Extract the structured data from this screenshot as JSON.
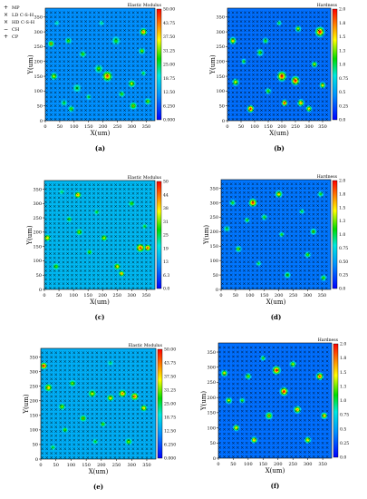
{
  "legend_entries": [
    {
      "symbol": "+",
      "label": "MP"
    },
    {
      "symbol": "×",
      "label": "LD C-S-H"
    },
    {
      "symbol": "×",
      "label": "HD C-S-H"
    },
    {
      "symbol": "−",
      "label": "CH"
    },
    {
      "symbol": "+",
      "label": "CP"
    }
  ],
  "chart_data": [
    {
      "type": "heatmap",
      "panel_label": "(a)",
      "colorbar_title": "Elastic Modulus",
      "xlabel": "X(um)",
      "ylabel": "Y(um)",
      "x_ticks": [
        0,
        50,
        100,
        150,
        200,
        250,
        300,
        350
      ],
      "y_ticks": [
        0,
        50,
        100,
        150,
        200,
        250,
        300,
        350
      ],
      "xlim": [
        0,
        380
      ],
      "ylim": [
        0,
        380
      ],
      "colorbar_ticks": [
        "0.000",
        "6.250",
        "12.50",
        "18.75",
        "25.00",
        "31.25",
        "37.50",
        "43.75",
        "50.00"
      ],
      "zlim": [
        0,
        50
      ],
      "background_level": 0.22,
      "grid_markers": true,
      "hotspots": [
        {
          "x": 20,
          "y": 260,
          "r": 14,
          "level": 0.78
        },
        {
          "x": 30,
          "y": 150,
          "r": 16,
          "level": 0.7
        },
        {
          "x": 80,
          "y": 270,
          "r": 14,
          "level": 0.62
        },
        {
          "x": 110,
          "y": 110,
          "r": 18,
          "level": 0.55
        },
        {
          "x": 130,
          "y": 225,
          "r": 15,
          "level": 0.6
        },
        {
          "x": 185,
          "y": 175,
          "r": 18,
          "level": 0.62
        },
        {
          "x": 215,
          "y": 150,
          "r": 22,
          "level": 0.92
        },
        {
          "x": 245,
          "y": 270,
          "r": 18,
          "level": 0.58
        },
        {
          "x": 300,
          "y": 125,
          "r": 16,
          "level": 0.72
        },
        {
          "x": 335,
          "y": 235,
          "r": 14,
          "level": 0.66
        },
        {
          "x": 340,
          "y": 300,
          "r": 16,
          "level": 0.88
        },
        {
          "x": 65,
          "y": 60,
          "r": 14,
          "level": 0.55
        },
        {
          "x": 90,
          "y": 40,
          "r": 14,
          "level": 0.62
        },
        {
          "x": 150,
          "y": 80,
          "r": 12,
          "level": 0.55
        },
        {
          "x": 265,
          "y": 90,
          "r": 14,
          "level": 0.6
        },
        {
          "x": 305,
          "y": 50,
          "r": 16,
          "level": 0.72
        },
        {
          "x": 355,
          "y": 65,
          "r": 14,
          "level": 0.66
        },
        {
          "x": 195,
          "y": 330,
          "r": 12,
          "level": 0.48
        },
        {
          "x": 40,
          "y": 330,
          "r": 12,
          "level": 0.45
        },
        {
          "x": 340,
          "y": 160,
          "r": 12,
          "level": 0.55
        }
      ]
    },
    {
      "type": "heatmap",
      "panel_label": "(b)",
      "colorbar_title": "Hardness",
      "xlabel": "X(um)",
      "ylabel": "Y(um)",
      "x_ticks": [
        0,
        50,
        100,
        150,
        200,
        250,
        300,
        350
      ],
      "y_ticks": [
        0,
        50,
        100,
        150,
        200,
        250,
        300,
        350
      ],
      "xlim": [
        0,
        380
      ],
      "ylim": [
        0,
        380
      ],
      "colorbar_ticks": [
        "0.0",
        "0.25",
        "0.5",
        "0.75",
        "1.0",
        "1.3",
        "1.5",
        "1.8",
        "2.0"
      ],
      "zlim": [
        0,
        2
      ],
      "background_level": 0.17,
      "grid_markers": true,
      "hotspots": [
        {
          "x": 20,
          "y": 270,
          "r": 16,
          "level": 0.8
        },
        {
          "x": 30,
          "y": 130,
          "r": 16,
          "level": 0.74
        },
        {
          "x": 85,
          "y": 40,
          "r": 16,
          "level": 1.0
        },
        {
          "x": 120,
          "y": 230,
          "r": 16,
          "level": 0.62
        },
        {
          "x": 140,
          "y": 270,
          "r": 14,
          "level": 0.6
        },
        {
          "x": 200,
          "y": 150,
          "r": 22,
          "level": 1.0
        },
        {
          "x": 250,
          "y": 135,
          "r": 20,
          "level": 1.0
        },
        {
          "x": 270,
          "y": 60,
          "r": 16,
          "level": 0.85
        },
        {
          "x": 320,
          "y": 190,
          "r": 14,
          "level": 0.72
        },
        {
          "x": 340,
          "y": 300,
          "r": 22,
          "level": 1.0
        },
        {
          "x": 350,
          "y": 120,
          "r": 14,
          "level": 0.8
        },
        {
          "x": 210,
          "y": 60,
          "r": 14,
          "level": 1.0
        },
        {
          "x": 300,
          "y": 40,
          "r": 14,
          "level": 0.78
        },
        {
          "x": 150,
          "y": 100,
          "r": 14,
          "level": 0.62
        },
        {
          "x": 60,
          "y": 200,
          "r": 12,
          "level": 0.6
        },
        {
          "x": 260,
          "y": 310,
          "r": 14,
          "level": 0.7
        },
        {
          "x": 190,
          "y": 330,
          "r": 12,
          "level": 0.55
        }
      ]
    },
    {
      "type": "heatmap",
      "panel_label": "(c)",
      "colorbar_title": "Elastic Modulus",
      "xlabel": "X(um)",
      "ylabel": "Y(um)",
      "x_ticks": [
        0,
        50,
        100,
        150,
        200,
        250,
        300,
        350
      ],
      "y_ticks": [
        0,
        50,
        100,
        150,
        200,
        250,
        300,
        350
      ],
      "xlim": [
        0,
        380
      ],
      "ylim": [
        0,
        380
      ],
      "colorbar_ticks": [
        "0.0",
        "6.3",
        "13",
        "19",
        "25",
        "31",
        "38",
        "44",
        "50"
      ],
      "zlim": [
        0,
        50
      ],
      "background_level": 0.3,
      "grid_markers": true,
      "hotspots": [
        {
          "x": 10,
          "y": 180,
          "r": 14,
          "level": 0.78
        },
        {
          "x": 40,
          "y": 80,
          "r": 14,
          "level": 0.62
        },
        {
          "x": 85,
          "y": 245,
          "r": 12,
          "level": 0.6
        },
        {
          "x": 115,
          "y": 330,
          "r": 14,
          "level": 0.86
        },
        {
          "x": 120,
          "y": 200,
          "r": 14,
          "level": 0.66
        },
        {
          "x": 155,
          "y": 130,
          "r": 12,
          "level": 0.62
        },
        {
          "x": 205,
          "y": 180,
          "r": 14,
          "level": 0.7
        },
        {
          "x": 250,
          "y": 80,
          "r": 14,
          "level": 0.78
        },
        {
          "x": 265,
          "y": 55,
          "r": 12,
          "level": 0.86
        },
        {
          "x": 330,
          "y": 145,
          "r": 18,
          "level": 0.95
        },
        {
          "x": 355,
          "y": 145,
          "r": 14,
          "level": 0.95
        },
        {
          "x": 300,
          "y": 300,
          "r": 14,
          "level": 0.6
        },
        {
          "x": 60,
          "y": 340,
          "r": 12,
          "level": 0.5
        },
        {
          "x": 345,
          "y": 220,
          "r": 12,
          "level": 0.55
        },
        {
          "x": 180,
          "y": 270,
          "r": 12,
          "level": 0.55
        }
      ]
    },
    {
      "type": "heatmap",
      "panel_label": "(d)",
      "colorbar_title": "Hardness",
      "xlabel": "X(um)",
      "ylabel": "Y(um)",
      "x_ticks": [
        0,
        50,
        100,
        150,
        200,
        250,
        300,
        350
      ],
      "y_ticks": [
        0,
        50,
        100,
        150,
        200,
        250,
        300,
        350
      ],
      "xlim": [
        0,
        380
      ],
      "ylim": [
        0,
        380
      ],
      "colorbar_ticks": [
        "0.0",
        "0.25",
        "0.50",
        "0.75",
        "1.0",
        "1.3",
        "1.5",
        "1.8",
        "2.0"
      ],
      "zlim": [
        0,
        2
      ],
      "background_level": 0.18,
      "grid_markers": true,
      "hotspots": [
        {
          "x": 20,
          "y": 210,
          "r": 14,
          "level": 0.55
        },
        {
          "x": 40,
          "y": 300,
          "r": 14,
          "level": 0.58
        },
        {
          "x": 60,
          "y": 140,
          "r": 14,
          "level": 0.66
        },
        {
          "x": 90,
          "y": 240,
          "r": 12,
          "level": 0.6
        },
        {
          "x": 110,
          "y": 300,
          "r": 18,
          "level": 1.0
        },
        {
          "x": 150,
          "y": 250,
          "r": 14,
          "level": 0.58
        },
        {
          "x": 200,
          "y": 330,
          "r": 16,
          "level": 0.8
        },
        {
          "x": 210,
          "y": 190,
          "r": 12,
          "level": 0.6
        },
        {
          "x": 230,
          "y": 50,
          "r": 14,
          "level": 0.62
        },
        {
          "x": 300,
          "y": 120,
          "r": 14,
          "level": 0.62
        },
        {
          "x": 320,
          "y": 200,
          "r": 14,
          "level": 0.66
        },
        {
          "x": 345,
          "y": 330,
          "r": 14,
          "level": 0.58
        },
        {
          "x": 355,
          "y": 40,
          "r": 14,
          "level": 0.62
        },
        {
          "x": 130,
          "y": 90,
          "r": 12,
          "level": 0.55
        },
        {
          "x": 280,
          "y": 270,
          "r": 12,
          "level": 0.55
        }
      ]
    },
    {
      "type": "heatmap",
      "panel_label": "(e)",
      "colorbar_title": "Elastic Modulus",
      "xlabel": "X(um)",
      "ylabel": "Y(um)",
      "x_ticks": [
        0,
        50,
        100,
        150,
        200,
        250,
        300,
        350
      ],
      "y_ticks": [
        0,
        50,
        100,
        150,
        200,
        250,
        300,
        350
      ],
      "xlim": [
        0,
        380
      ],
      "ylim": [
        0,
        380
      ],
      "colorbar_ticks": [
        "0.000",
        "6.250",
        "12.50",
        "18.75",
        "25.00",
        "31.25",
        "37.50",
        "43.75",
        "50.00"
      ],
      "zlim": [
        0,
        50
      ],
      "background_level": 0.28,
      "grid_markers": true,
      "hotspots": [
        {
          "x": 10,
          "y": 320,
          "r": 14,
          "level": 1.0
        },
        {
          "x": 25,
          "y": 245,
          "r": 16,
          "level": 0.8
        },
        {
          "x": 70,
          "y": 180,
          "r": 14,
          "level": 0.66
        },
        {
          "x": 80,
          "y": 100,
          "r": 12,
          "level": 0.62
        },
        {
          "x": 105,
          "y": 260,
          "r": 14,
          "level": 0.66
        },
        {
          "x": 140,
          "y": 140,
          "r": 14,
          "level": 0.7
        },
        {
          "x": 170,
          "y": 225,
          "r": 16,
          "level": 0.72
        },
        {
          "x": 205,
          "y": 120,
          "r": 12,
          "level": 0.62
        },
        {
          "x": 230,
          "y": 210,
          "r": 14,
          "level": 0.78
        },
        {
          "x": 270,
          "y": 225,
          "r": 16,
          "level": 0.86
        },
        {
          "x": 310,
          "y": 215,
          "r": 16,
          "level": 0.9
        },
        {
          "x": 340,
          "y": 175,
          "r": 14,
          "level": 0.78
        },
        {
          "x": 290,
          "y": 60,
          "r": 14,
          "level": 0.66
        },
        {
          "x": 40,
          "y": 40,
          "r": 12,
          "level": 0.55
        },
        {
          "x": 180,
          "y": 60,
          "r": 12,
          "level": 0.55
        },
        {
          "x": 230,
          "y": 330,
          "r": 12,
          "level": 0.5
        }
      ]
    },
    {
      "type": "heatmap",
      "panel_label": "(f)",
      "colorbar_title": "Hardness",
      "xlabel": "X(um)",
      "ylabel": "Y(um)",
      "x_ticks": [
        0,
        50,
        100,
        150,
        200,
        250,
        300,
        350
      ],
      "y_ticks": [
        0,
        50,
        100,
        150,
        200,
        250,
        300,
        350
      ],
      "xlim": [
        0,
        380
      ],
      "ylim": [
        0,
        380
      ],
      "colorbar_ticks": [
        "0.0",
        "0.25",
        "0.5",
        "0.75",
        "1.0",
        "1.3",
        "1.5",
        "1.8",
        "2.0"
      ],
      "zlim": [
        0,
        2
      ],
      "background_level": 0.17,
      "grid_markers": true,
      "hotspots": [
        {
          "x": 20,
          "y": 280,
          "r": 14,
          "level": 0.78
        },
        {
          "x": 35,
          "y": 190,
          "r": 14,
          "level": 0.72
        },
        {
          "x": 60,
          "y": 100,
          "r": 14,
          "level": 0.8
        },
        {
          "x": 100,
          "y": 270,
          "r": 14,
          "level": 0.66
        },
        {
          "x": 120,
          "y": 60,
          "r": 14,
          "level": 0.85
        },
        {
          "x": 170,
          "y": 140,
          "r": 16,
          "level": 0.78
        },
        {
          "x": 195,
          "y": 290,
          "r": 18,
          "level": 1.0
        },
        {
          "x": 220,
          "y": 220,
          "r": 18,
          "level": 1.0
        },
        {
          "x": 265,
          "y": 160,
          "r": 16,
          "level": 0.86
        },
        {
          "x": 300,
          "y": 60,
          "r": 14,
          "level": 0.8
        },
        {
          "x": 340,
          "y": 270,
          "r": 16,
          "level": 0.95
        },
        {
          "x": 355,
          "y": 140,
          "r": 14,
          "level": 0.85
        },
        {
          "x": 250,
          "y": 310,
          "r": 14,
          "level": 0.7
        },
        {
          "x": 150,
          "y": 330,
          "r": 12,
          "level": 0.6
        },
        {
          "x": 80,
          "y": 190,
          "r": 12,
          "level": 0.6
        }
      ]
    }
  ]
}
